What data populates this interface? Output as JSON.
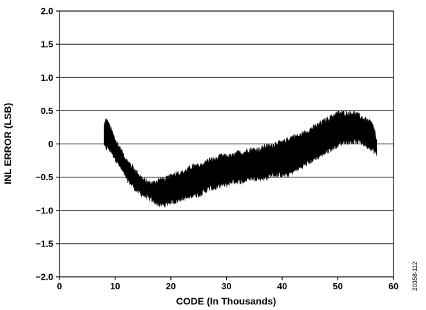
{
  "chart_data": {
    "type": "area",
    "xlabel": "CODE (In Thousands)",
    "ylabel": "INL ERROR (LSB)",
    "xlim": [
      0,
      60
    ],
    "ylim": [
      -2.0,
      2.0
    ],
    "x_ticks": [
      0,
      10,
      20,
      30,
      40,
      50,
      60
    ],
    "x_tick_labels": [
      "0",
      "10",
      "20",
      "30",
      "40",
      "50",
      "60"
    ],
    "y_ticks": [
      2.0,
      1.5,
      1.0,
      0.5,
      0,
      -0.5,
      -1.0,
      -1.5,
      -2.0
    ],
    "y_tick_labels": [
      "2.0",
      "1.5",
      "1.0",
      "0.5",
      "0",
      "−0.5",
      "−1.0",
      "−1.5",
      "−2.0"
    ],
    "grid": "horizontal",
    "series": [
      {
        "color": "#000000",
        "x": [
          8.0,
          8.3,
          8.8,
          9.3,
          10.0,
          11.0,
          12.0,
          13.0,
          14.0,
          15.0,
          16.0,
          17.0,
          18.0,
          19.0,
          20.0,
          21.0,
          22.0,
          23.0,
          24.0,
          25.0,
          26.0,
          27.0,
          28.0,
          29.0,
          30.0,
          31.0,
          32.0,
          33.0,
          34.0,
          35.0,
          36.0,
          37.0,
          38.0,
          39.0,
          40.0,
          41.0,
          42.0,
          43.0,
          44.0,
          45.0,
          46.0,
          47.0,
          48.0,
          49.0,
          50.0,
          51.0,
          52.0,
          53.0,
          54.0,
          55.0,
          56.0,
          56.6,
          57.0
        ],
        "upper": [
          0.25,
          0.35,
          0.3,
          0.2,
          0.05,
          -0.1,
          -0.25,
          -0.35,
          -0.45,
          -0.55,
          -0.6,
          -0.6,
          -0.55,
          -0.55,
          -0.5,
          -0.45,
          -0.45,
          -0.4,
          -0.35,
          -0.35,
          -0.3,
          -0.25,
          -0.25,
          -0.2,
          -0.2,
          -0.2,
          -0.15,
          -0.15,
          -0.1,
          -0.1,
          -0.1,
          -0.05,
          -0.05,
          0.0,
          0.0,
          0.05,
          0.1,
          0.1,
          0.15,
          0.2,
          0.25,
          0.3,
          0.35,
          0.4,
          0.45,
          0.45,
          0.45,
          0.45,
          0.4,
          0.35,
          0.3,
          0.2,
          0.0
        ],
        "lower": [
          0.0,
          -0.05,
          -0.05,
          -0.1,
          -0.2,
          -0.35,
          -0.5,
          -0.6,
          -0.7,
          -0.75,
          -0.8,
          -0.85,
          -0.9,
          -0.9,
          -0.85,
          -0.85,
          -0.8,
          -0.8,
          -0.75,
          -0.75,
          -0.7,
          -0.65,
          -0.65,
          -0.6,
          -0.6,
          -0.55,
          -0.55,
          -0.55,
          -0.5,
          -0.5,
          -0.5,
          -0.5,
          -0.45,
          -0.45,
          -0.45,
          -0.45,
          -0.4,
          -0.35,
          -0.3,
          -0.25,
          -0.2,
          -0.15,
          -0.1,
          -0.05,
          0.0,
          0.05,
          0.05,
          0.05,
          0.05,
          0.0,
          -0.05,
          -0.1,
          -0.15
        ]
      }
    ]
  },
  "figure_id": "20358-112"
}
